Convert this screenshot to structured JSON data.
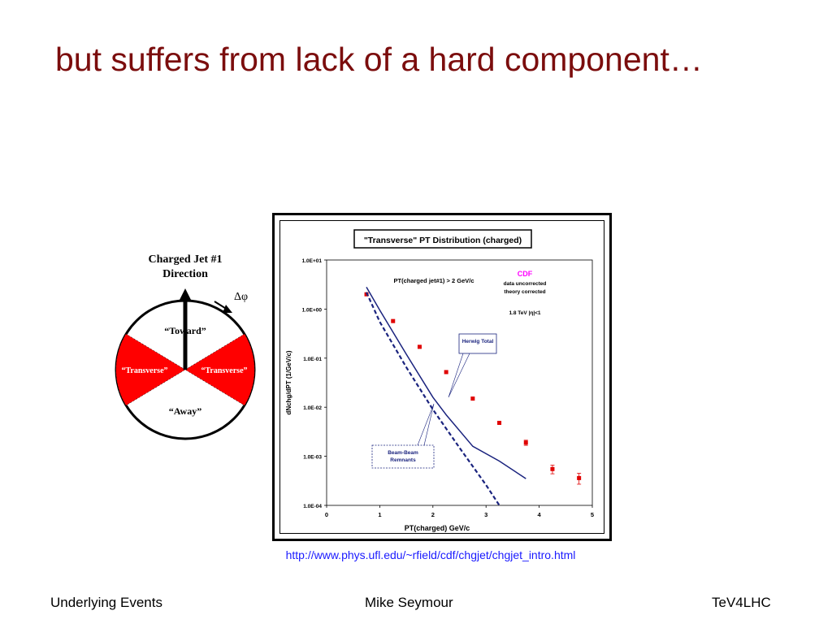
{
  "slide": {
    "title": "but suffers from lack of a hard component…",
    "url": "http://www.phys.ufl.edu/~rfield/cdf/chgjet/chgjet_intro.html",
    "footer_left": "Underlying Events",
    "footer_center": "Mike Seymour",
    "footer_right": "TeV4LHC"
  },
  "diagram": {
    "heading_line1": "Charged Jet #1",
    "heading_line2": "Direction",
    "delta_phi": "Δφ",
    "toward": "“Toward”",
    "transverse_left": "“Transverse”",
    "transverse_right": "“Transverse”",
    "away": "“Away”",
    "transverse_color": "#ff0000"
  },
  "chart_data": {
    "type": "scatter",
    "title": "\"Transverse\" PT Distribution (charged)",
    "xlabel": "PT(charged)  GeV/c",
    "ylabel": "dNchg/dPT (1/GeV/c)",
    "xlim": [
      0,
      5
    ],
    "ylim": [
      0.0001,
      10
    ],
    "log_y": true,
    "x_ticks": [
      "0",
      "1",
      "2",
      "3",
      "4",
      "5"
    ],
    "y_ticks": [
      "1.0E-04",
      "1.0E-03",
      "1.0E-02",
      "1.0E-01",
      "1.0E+00",
      "1.0E+01"
    ],
    "annotations": {
      "cut": "PT(charged jet#1) > 2 GeV/c",
      "experiment": "CDF",
      "note1": "data uncorrected",
      "note2": "theory corrected",
      "energy": "1.8 TeV |η|<1",
      "herwig_label": "Herwig Total",
      "bb_label1": "Beam-Beam",
      "bb_label2": "Remnants"
    },
    "colors": {
      "data": "#e00000",
      "theory": "#1a237e",
      "cdf": "#ff00ff"
    },
    "series": [
      {
        "kind": "points",
        "x": [
          0.75,
          1.25,
          1.75,
          2.25,
          2.75,
          3.25,
          3.75,
          4.25,
          4.75
        ],
        "y": [
          2.0,
          0.57,
          0.17,
          0.052,
          0.015,
          0.0048,
          0.0019,
          0.00055,
          0.00036
        ],
        "err_rel": [
          0,
          0,
          0,
          0,
          0,
          0,
          0.12,
          0.2,
          0.25
        ]
      },
      {
        "kind": "solid",
        "x": [
          0.75,
          1.0,
          1.5,
          2.0,
          2.25,
          2.75,
          3.25,
          3.75
        ],
        "y": [
          2.8,
          0.95,
          0.12,
          0.016,
          0.007,
          0.0016,
          0.0008,
          0.00035
        ]
      },
      {
        "kind": "dashed",
        "x": [
          0.75,
          1.0,
          1.5,
          2.0,
          2.5,
          3.0,
          3.25
        ],
        "y": [
          2.2,
          0.55,
          0.065,
          0.009,
          0.0015,
          0.00026,
          0.0001
        ]
      }
    ]
  }
}
